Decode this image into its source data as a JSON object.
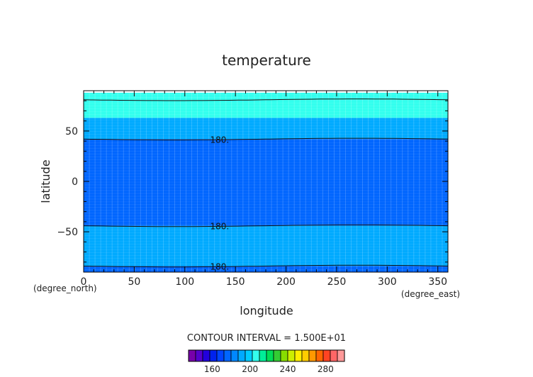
{
  "chart_data": {
    "type": "heatmap",
    "title": "temperature",
    "xlabel": "longitude",
    "ylabel": "latitude",
    "x_units": "(degree_east)",
    "y_units": "(degree_north)",
    "xlim": [
      0,
      360
    ],
    "ylim": [
      -90,
      90
    ],
    "x_ticks": [
      0,
      50,
      100,
      150,
      200,
      250,
      300,
      350
    ],
    "y_ticks": [
      50,
      0,
      -50
    ],
    "bands": [
      {
        "lat_min": 63,
        "lat_max": 88,
        "color": "#33ffee"
      },
      {
        "lat_min": 42,
        "lat_max": 63,
        "color": "#00aaff"
      },
      {
        "lat_min": -44,
        "lat_max": 42,
        "color": "#0066ff"
      },
      {
        "lat_min": -84,
        "lat_max": -44,
        "color": "#00aaff"
      },
      {
        "lat_min": -90,
        "lat_max": -84,
        "color": "#0066ff"
      }
    ],
    "contours": [
      {
        "lat": 81,
        "label": ""
      },
      {
        "lat": 42,
        "label": "180."
      },
      {
        "lat": -44,
        "label": "180."
      },
      {
        "lat": -84,
        "label": "180."
      }
    ],
    "contour_interval_text": "CONTOUR INTERVAL = 1.500E+01",
    "colorbar": {
      "colors": [
        "#7700aa",
        "#5500cc",
        "#2200dd",
        "#0022ee",
        "#0044ff",
        "#0066ff",
        "#0088ff",
        "#00aaff",
        "#00ccff",
        "#33ffee",
        "#00ee99",
        "#00dd55",
        "#33cc33",
        "#88dd00",
        "#ccee00",
        "#ffee00",
        "#ffcc00",
        "#ff9900",
        "#ff6600",
        "#ff4422",
        "#ff6666",
        "#ff9999"
      ],
      "tick_labels": [
        "160",
        "200",
        "240",
        "280"
      ],
      "tick_values": [
        160,
        200,
        240,
        280
      ],
      "range": [
        135,
        300
      ]
    }
  }
}
